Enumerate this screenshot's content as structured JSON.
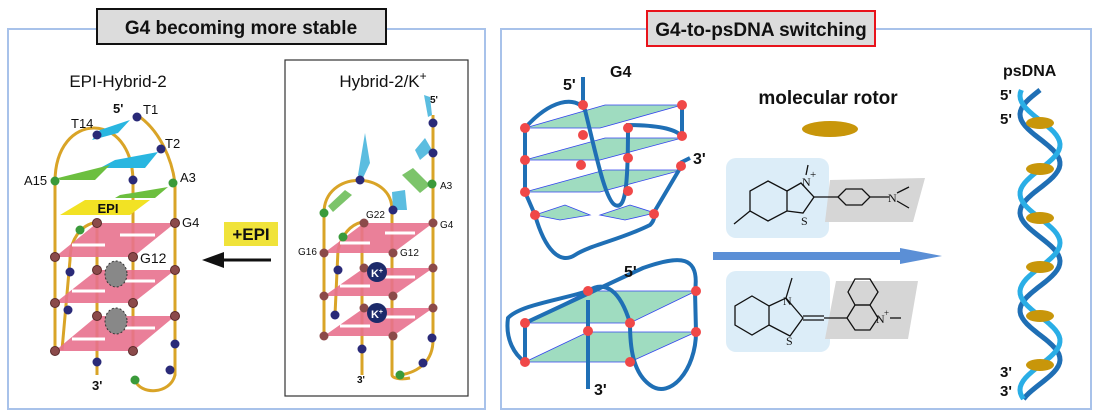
{
  "left_panel": {
    "title": "G4 becoming more stable",
    "epi_structure": {
      "label": "EPI-Hybrid-2",
      "ligand_label": "EPI",
      "residues": [
        "5'",
        "T1",
        "T14",
        "T2",
        "A15",
        "A3",
        "G4",
        "G12",
        "3'"
      ]
    },
    "hybrid_structure": {
      "label": "Hybrid-2/K",
      "label_superscript": "+",
      "residues": [
        "5'",
        "A3",
        "G22",
        "G4",
        "G16",
        "G12",
        "3'"
      ],
      "ion_label": "K",
      "ion_superscript": "+"
    },
    "transition_label": "+EPI",
    "colors": {
      "quartet": "#e8728e",
      "backbone": "#d9a427",
      "ligand": "#f2e224",
      "title_bg": "#dcdcdc",
      "frame": "#a8c2ea"
    }
  },
  "right_panel": {
    "title": "G4-to-psDNA switching",
    "g4_label": "G4",
    "top_g4": {
      "five_prime": "5'",
      "three_prime": "3'"
    },
    "bottom_g4": {
      "five_prime": "5'",
      "three_prime": "3'"
    },
    "rotor_label": "molecular rotor",
    "molecule1": {
      "atoms": [
        "N",
        "+",
        "S",
        "N"
      ]
    },
    "molecule2": {
      "atoms": [
        "N",
        "S",
        "N",
        "+"
      ]
    },
    "psdna_label": "psDNA",
    "psdna_ends": {
      "top1": "5'",
      "top2": "5'",
      "bottom1": "3'",
      "bottom2": "3'"
    },
    "colors": {
      "strand": "#1f6fb5",
      "quartet": "#9fdcc0",
      "g_dot": "#f04848",
      "rotor": "#c8960a",
      "arrow": "#5b8fd6",
      "title_border": "#e8131b",
      "helix_light": "#2aaee6"
    }
  }
}
